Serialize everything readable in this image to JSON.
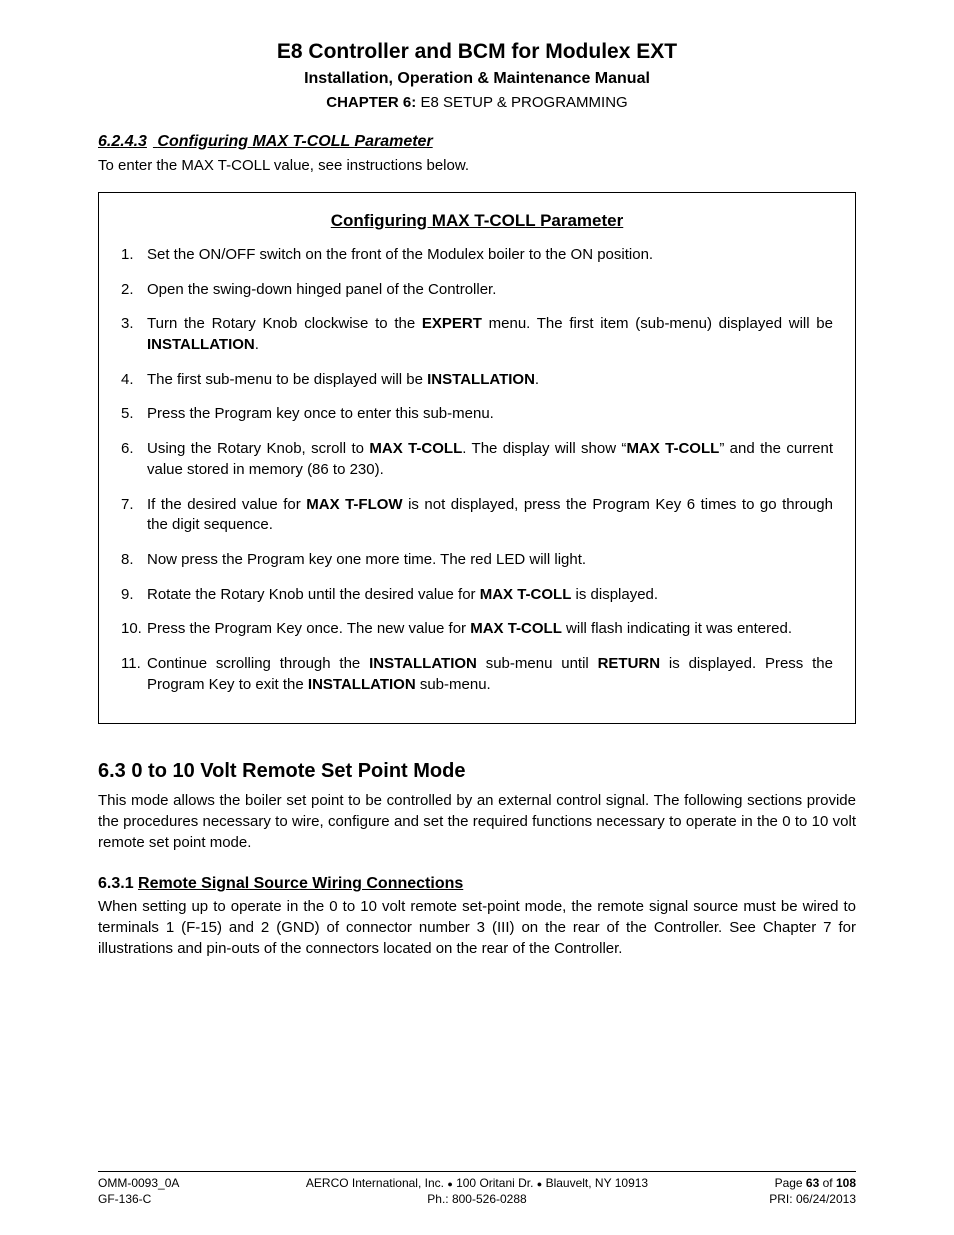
{
  "header": {
    "title1": "E8 Controller and BCM for Modulex EXT",
    "title2": "Installation, Operation & Maintenance Manual",
    "chapter_label": "CHAPTER 6:",
    "chapter_text": " E8 SETUP & PROGRAMMING"
  },
  "section_6243": {
    "number": "6.2.4.3",
    "title": "Configuring MAX T-COLL Parameter",
    "intro": "To enter the MAX T-COLL value, see instructions below."
  },
  "box": {
    "title": "Configuring MAX T-COLL Parameter",
    "steps": [
      {
        "n": "1.",
        "pre": "Set the ON/OFF switch on the front of the Modulex boiler to the ON position.",
        "b1": "",
        "mid": "",
        "b2": "",
        "post": ""
      },
      {
        "n": "2.",
        "pre": "Open the swing-down hinged panel of the Controller.",
        "b1": "",
        "mid": "",
        "b2": "",
        "post": ""
      },
      {
        "n": "3.",
        "pre": "Turn the Rotary Knob clockwise to the ",
        "b1": "EXPERT",
        "mid": " menu. The first item (sub-menu) displayed will be ",
        "b2": "INSTALLATION",
        "post": "."
      },
      {
        "n": "4.",
        "pre": "The first sub-menu to be displayed will be ",
        "b1": "INSTALLATION",
        "mid": ".",
        "b2": "",
        "post": ""
      },
      {
        "n": "5.",
        "pre": "Press the Program key once to enter this sub-menu.",
        "b1": "",
        "mid": "",
        "b2": "",
        "post": ""
      },
      {
        "n": "6.",
        "pre": "Using the Rotary Knob, scroll to ",
        "b1": "MAX T-COLL",
        "mid": ". The display will show “",
        "b2": "MAX T-COLL",
        "post": "” and the current value stored in memory (86 to 230)."
      },
      {
        "n": "7.",
        "pre": "If the desired value for ",
        "b1": "MAX T-FLOW",
        "mid": " is not displayed, press the Program Key 6 times to go through the digit sequence.",
        "b2": "",
        "post": ""
      },
      {
        "n": "8.",
        "pre": "Now press the Program key one more time. The red LED will light.",
        "b1": "",
        "mid": "",
        "b2": "",
        "post": ""
      },
      {
        "n": "9.",
        "pre": "Rotate the Rotary Knob until the desired value for ",
        "b1": "MAX T-COLL",
        "mid": " is displayed.",
        "b2": "",
        "post": ""
      },
      {
        "n": "10.",
        "pre": "Press the Program Key once. The new value for ",
        "b1": "MAX T-COLL",
        "mid": " will flash indicating it was entered.",
        "b2": "",
        "post": ""
      },
      {
        "n": "11.",
        "pre": "Continue scrolling through the ",
        "b1": "INSTALLATION",
        "mid": " sub-menu until ",
        "b2": "RETURN",
        "post": " is displayed. Press the Program Key to exit the ",
        "b3": "INSTALLATION",
        "tail": " sub-menu."
      }
    ]
  },
  "section_63": {
    "heading": "6.3  0 to 10 Volt Remote Set Point Mode",
    "para": "This mode allows the boiler set point to be controlled by an external control signal. The following sections provide the procedures necessary to wire, configure and set the required functions necessary to operate in the 0 to 10 volt remote set point mode."
  },
  "section_631": {
    "number": "6.3.1 ",
    "title": "Remote Signal Source Wiring Connections",
    "para": "When setting up to operate in the 0 to 10 volt remote set-point mode, the remote signal source must be wired to terminals 1 (F-15) and 2 (GND) of connector number 3 (III) on the rear of the Controller. See Chapter 7 for illustrations and pin-outs of the connectors located on the rear of the Controller."
  },
  "footer": {
    "left1": "OMM-0093_0A",
    "left2": "GF-136-C",
    "center1a": "AERCO International, Inc. ",
    "center1b": " 100 Oritani Dr. ",
    "center1c": " Blauvelt, NY 10913",
    "center2": "Ph.: 800-526-0288",
    "right1_pre": "Page ",
    "right1_b": "63",
    "right1_mid": " of ",
    "right1_total": "108",
    "right2": "PRI:  06/24/2013"
  }
}
